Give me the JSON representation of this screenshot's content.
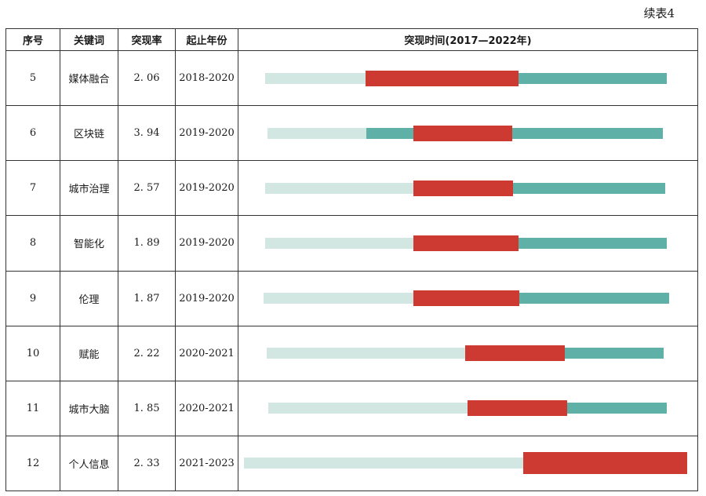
{
  "caption": "续表4",
  "headers": [
    "序号",
    "关键词",
    "突现率",
    "起止年份",
    "突现时间(2017—2022年)"
  ],
  "rows": [
    {
      "no": "5",
      "keyword": "媒体融合",
      "rate": "2. 06",
      "span": "2018-2020",
      "burst": [
        0.25,
        0.63
      ],
      "mid_start": 0.0
    },
    {
      "no": "6",
      "keyword": "区块链",
      "rate": "3. 94",
      "span": "2019-2020",
      "burst": [
        0.37,
        0.62
      ],
      "mid_start": 0.25
    },
    {
      "no": "7",
      "keyword": "城市治理",
      "rate": "2. 57",
      "span": "2019-2020",
      "burst": [
        0.37,
        0.62
      ],
      "mid_start": 0.62
    },
    {
      "no": "8",
      "keyword": "智能化",
      "rate": "1. 89",
      "span": "2019-2020",
      "burst": [
        0.37,
        0.63
      ],
      "mid_start": 0.63
    },
    {
      "no": "9",
      "keyword": "伦理",
      "rate": "1. 87",
      "span": "2019-2020",
      "burst": [
        0.37,
        0.63
      ],
      "mid_start": 0.63
    },
    {
      "no": "10",
      "keyword": "赋能",
      "rate": "2. 22",
      "span": "2020-2021",
      "burst": [
        0.5,
        0.75
      ],
      "mid_start": 0.75
    },
    {
      "no": "11",
      "keyword": "城市大脑",
      "rate": "1. 85",
      "span": "2020-2021",
      "burst": [
        0.5,
        0.75
      ],
      "mid_start": 0.75
    },
    {
      "no": "12",
      "keyword": "个人信息",
      "rate": "2. 33",
      "span": "2021-2023",
      "burst": [
        0.63,
        1.0
      ],
      "mid_start": 1.0
    }
  ]
}
